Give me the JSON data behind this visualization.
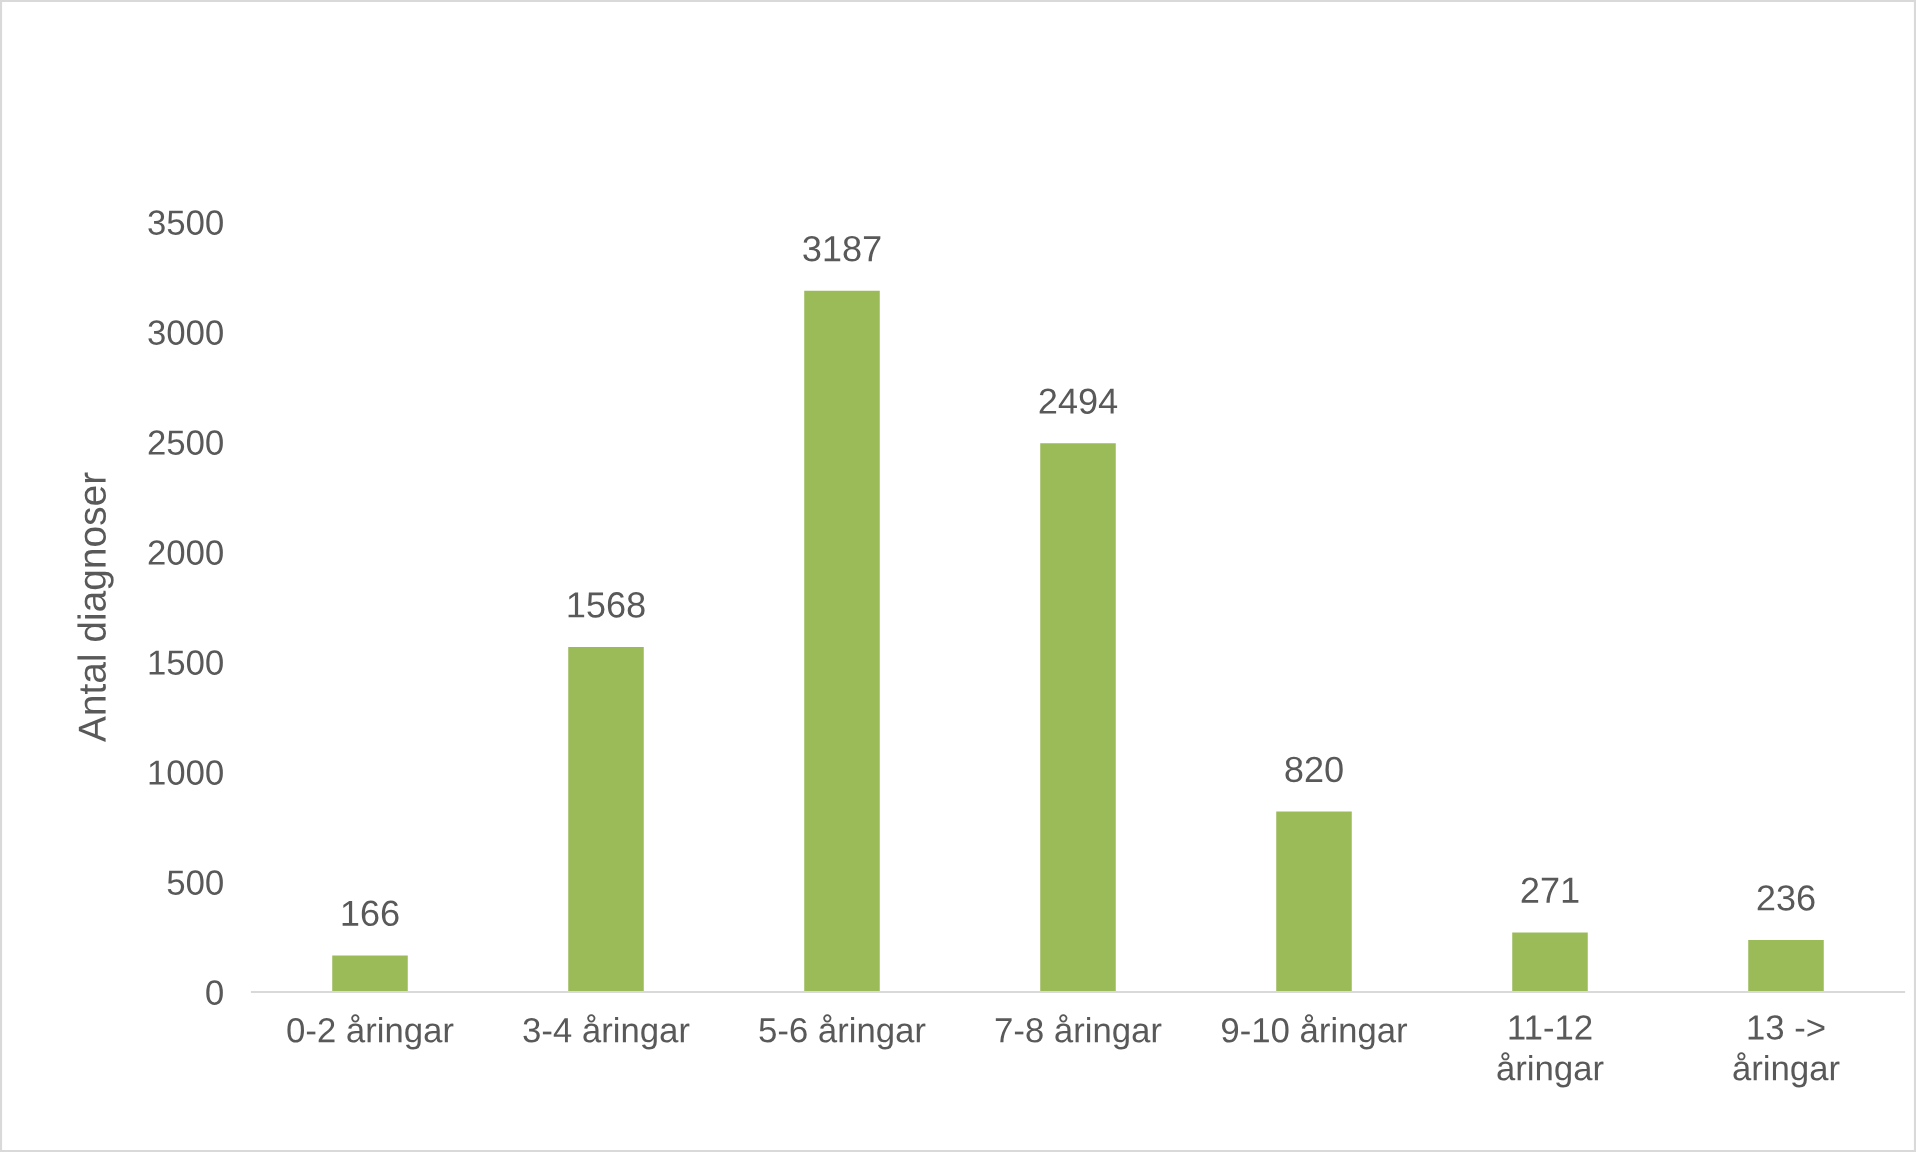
{
  "chart_data": {
    "type": "bar",
    "ylabel": "Antal diagnoser",
    "categories": [
      "0-2 åringar",
      "3-4 åringar",
      "5-6 åringar",
      "7-8 åringar",
      "9-10 åringar",
      "11-12\nåringar",
      "13 ->\nåringar"
    ],
    "values": [
      166,
      1568,
      3187,
      2494,
      820,
      271,
      236
    ],
    "color": "#9bbb59",
    "ylim": [
      0,
      3500
    ],
    "yticks": [
      0,
      500,
      1000,
      1500,
      2000,
      2500,
      3000,
      3500
    ],
    "data_labels": true,
    "grid": false
  }
}
